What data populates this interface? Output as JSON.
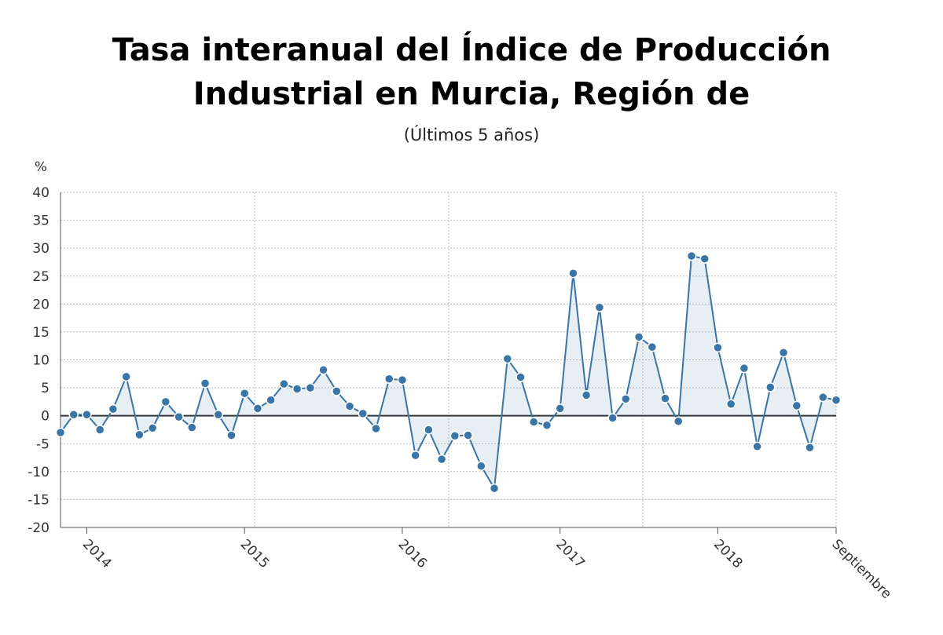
{
  "chart_data": {
    "type": "line",
    "title": "Tasa interanual del Índice de Producción Industrial en Murcia, Región de",
    "subtitle": "(Últimos 5 años)",
    "y_label": "%",
    "categories": [
      null,
      null,
      "2014",
      null,
      null,
      null,
      null,
      null,
      null,
      null,
      null,
      null,
      null,
      null,
      "2015",
      null,
      null,
      null,
      null,
      null,
      null,
      null,
      null,
      null,
      null,
      null,
      "2016",
      null,
      null,
      null,
      null,
      null,
      null,
      null,
      null,
      null,
      null,
      null,
      "2017",
      null,
      null,
      null,
      null,
      null,
      null,
      null,
      null,
      null,
      null,
      null,
      "2018",
      null,
      null,
      null,
      null,
      null,
      null,
      null,
      null,
      "Septiembre"
    ],
    "series": [
      {
        "name": "Tasa interanual",
        "color": "#3a75a8",
        "values": [
          -3,
          0.2,
          0.2,
          -2.5,
          1.2,
          7,
          -3.4,
          -2.2,
          2.5,
          -0.2,
          -2.1,
          5.8,
          0.2,
          -3.5,
          4,
          1.3,
          2.8,
          5.7,
          4.8,
          5,
          8.2,
          4.4,
          1.7,
          0.4,
          -2.3,
          6.6,
          6.4,
          -7.1,
          -2.5,
          -7.8,
          -3.6,
          -3.5,
          -9,
          -13,
          10.2,
          6.9,
          -1.1,
          -1.7,
          1.3,
          25.5,
          3.7,
          19.4,
          -0.4,
          3,
          14.1,
          12.3,
          3.1,
          -1,
          28.6,
          28.1,
          12.2,
          2.1,
          8.5,
          -5.5,
          5.1,
          11.3,
          1.8,
          -5.7,
          3.3,
          2.8
        ]
      }
    ],
    "ylim": [
      -20,
      40
    ],
    "yticks": [
      -20,
      -15,
      -10,
      -5,
      0,
      5,
      10,
      15,
      20,
      25,
      30,
      35,
      40
    ],
    "grid": true
  }
}
